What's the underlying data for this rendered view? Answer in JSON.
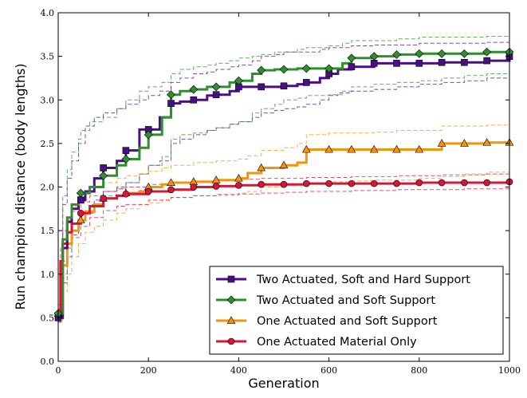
{
  "chart_data": {
    "type": "line",
    "xlabel": "Generation",
    "ylabel": "Run champion distance (body lengths)",
    "xlim": [
      0,
      1000
    ],
    "ylim": [
      0.0,
      4.0
    ],
    "xticks": [
      "0",
      "200",
      "400",
      "600",
      "800",
      "1000"
    ],
    "yticks": [
      "0.0",
      "0.5",
      "1.0",
      "1.5",
      "2.0",
      "2.5",
      "3.0",
      "3.5",
      "4.0"
    ],
    "grid": false,
    "legend_position": "lower-right",
    "series": [
      {
        "name": "Two Actuated, Soft and Hard Support",
        "color": "#4b0f85",
        "marker": "square",
        "x": [
          0,
          10,
          20,
          30,
          45,
          60,
          80,
          100,
          130,
          150,
          180,
          200,
          225,
          250,
          270,
          300,
          330,
          350,
          380,
          400,
          430,
          450,
          480,
          500,
          530,
          550,
          580,
          600,
          620,
          650,
          700,
          750,
          800,
          850,
          900,
          950,
          1000
        ],
        "values": [
          0.5,
          1.3,
          1.6,
          1.75,
          1.85,
          1.95,
          2.1,
          2.22,
          2.3,
          2.42,
          2.66,
          2.66,
          2.8,
          2.96,
          2.98,
          3.0,
          3.05,
          3.06,
          3.1,
          3.15,
          3.15,
          3.15,
          3.15,
          3.16,
          3.18,
          3.2,
          3.25,
          3.3,
          3.35,
          3.38,
          3.42,
          3.42,
          3.42,
          3.43,
          3.43,
          3.45,
          3.5
        ],
        "upper": [
          0.6,
          1.8,
          2.1,
          2.3,
          2.5,
          2.7,
          2.8,
          2.85,
          2.9,
          2.95,
          3.0,
          3.05,
          3.1,
          3.2,
          3.25,
          3.3,
          3.32,
          3.35,
          3.38,
          3.4,
          3.45,
          3.5,
          3.52,
          3.55,
          3.55,
          3.55,
          3.58,
          3.6,
          3.6,
          3.62,
          3.63,
          3.63,
          3.65,
          3.65,
          3.65,
          3.66,
          3.7
        ],
        "lower": [
          0.45,
          0.9,
          1.2,
          1.45,
          1.6,
          1.7,
          1.85,
          1.95,
          2.0,
          2.05,
          2.15,
          2.25,
          2.3,
          2.5,
          2.55,
          2.6,
          2.65,
          2.68,
          2.72,
          2.75,
          2.8,
          2.85,
          2.88,
          2.9,
          2.92,
          2.95,
          3.0,
          3.05,
          3.08,
          3.1,
          3.12,
          3.15,
          3.18,
          3.2,
          3.22,
          3.25,
          3.3
        ]
      },
      {
        "name": "Two Actuated and Soft Support",
        "color": "#2f8f2f",
        "marker": "diamond",
        "x": [
          0,
          10,
          20,
          30,
          45,
          50,
          70,
          100,
          130,
          150,
          180,
          200,
          230,
          250,
          270,
          300,
          330,
          350,
          380,
          400,
          430,
          450,
          480,
          500,
          530,
          550,
          580,
          600,
          630,
          650,
          700,
          750,
          800,
          850,
          900,
          950,
          1000
        ],
        "values": [
          0.55,
          1.4,
          1.65,
          1.8,
          1.88,
          1.93,
          2.0,
          2.13,
          2.25,
          2.32,
          2.45,
          2.6,
          2.8,
          3.06,
          3.1,
          3.12,
          3.15,
          3.15,
          3.2,
          3.22,
          3.3,
          3.34,
          3.35,
          3.35,
          3.36,
          3.36,
          3.36,
          3.36,
          3.42,
          3.48,
          3.5,
          3.52,
          3.53,
          3.53,
          3.53,
          3.55,
          3.55
        ],
        "upper": [
          0.65,
          1.9,
          2.2,
          2.4,
          2.55,
          2.65,
          2.75,
          2.8,
          2.9,
          3.0,
          3.1,
          3.15,
          3.2,
          3.3,
          3.35,
          3.38,
          3.4,
          3.42,
          3.45,
          3.48,
          3.5,
          3.52,
          3.55,
          3.55,
          3.58,
          3.6,
          3.6,
          3.62,
          3.65,
          3.68,
          3.68,
          3.7,
          3.72,
          3.72,
          3.72,
          3.73,
          3.76
        ],
        "lower": [
          0.5,
          1.0,
          1.3,
          1.5,
          1.65,
          1.72,
          1.8,
          1.9,
          1.98,
          2.05,
          2.15,
          2.25,
          2.35,
          2.55,
          2.6,
          2.62,
          2.65,
          2.68,
          2.72,
          2.75,
          2.85,
          2.9,
          2.95,
          3.0,
          3.02,
          3.05,
          3.05,
          3.06,
          3.1,
          3.15,
          3.18,
          3.2,
          3.22,
          3.25,
          3.28,
          3.3,
          3.35
        ]
      },
      {
        "name": "One Actuated and Soft Support",
        "color": "#f2940f",
        "marker": "triangle",
        "x": [
          0,
          10,
          20,
          30,
          45,
          60,
          80,
          100,
          130,
          150,
          180,
          200,
          230,
          250,
          300,
          350,
          400,
          420,
          450,
          500,
          530,
          550,
          600,
          650,
          700,
          750,
          800,
          850,
          900,
          950,
          1000
        ],
        "values": [
          0.55,
          1.1,
          1.35,
          1.5,
          1.62,
          1.72,
          1.8,
          1.87,
          1.9,
          1.93,
          1.95,
          2.0,
          2.03,
          2.05,
          2.06,
          2.08,
          2.1,
          2.16,
          2.22,
          2.25,
          2.28,
          2.43,
          2.43,
          2.43,
          2.43,
          2.43,
          2.43,
          2.5,
          2.5,
          2.51,
          2.51
        ],
        "upper": [
          0.65,
          1.4,
          1.65,
          1.78,
          1.88,
          1.95,
          2.0,
          2.05,
          2.1,
          2.13,
          2.15,
          2.18,
          2.22,
          2.25,
          2.28,
          2.3,
          2.32,
          2.36,
          2.42,
          2.45,
          2.5,
          2.6,
          2.62,
          2.62,
          2.63,
          2.65,
          2.65,
          2.7,
          2.7,
          2.71,
          2.72
        ],
        "lower": [
          0.45,
          0.8,
          1.0,
          1.2,
          1.35,
          1.48,
          1.55,
          1.62,
          1.7,
          1.75,
          1.8,
          1.82,
          1.85,
          1.88,
          1.9,
          1.92,
          1.93,
          1.95,
          2.0,
          2.02,
          2.03,
          2.05,
          2.06,
          2.07,
          2.08,
          2.08,
          2.1,
          2.12,
          2.15,
          2.17,
          2.2
        ]
      },
      {
        "name": "One Actuated Material Only",
        "color": "#d6173a",
        "marker": "circle",
        "x": [
          0,
          5,
          10,
          20,
          30,
          50,
          70,
          100,
          130,
          150,
          200,
          250,
          300,
          350,
          400,
          450,
          500,
          550,
          600,
          650,
          700,
          750,
          800,
          850,
          900,
          950,
          1000
        ],
        "values": [
          0.5,
          1.15,
          1.35,
          1.48,
          1.58,
          1.7,
          1.78,
          1.87,
          1.9,
          1.92,
          1.95,
          1.97,
          2.0,
          2.01,
          2.02,
          2.03,
          2.03,
          2.04,
          2.04,
          2.04,
          2.04,
          2.04,
          2.05,
          2.05,
          2.05,
          2.05,
          2.06
        ],
        "upper": [
          0.55,
          1.3,
          1.5,
          1.62,
          1.72,
          1.83,
          1.9,
          1.95,
          1.98,
          2.0,
          2.03,
          2.05,
          2.07,
          2.08,
          2.09,
          2.1,
          2.1,
          2.11,
          2.11,
          2.12,
          2.12,
          2.13,
          2.13,
          2.14,
          2.14,
          2.15,
          2.15
        ],
        "lower": [
          0.45,
          0.95,
          1.15,
          1.3,
          1.42,
          1.55,
          1.65,
          1.73,
          1.78,
          1.8,
          1.85,
          1.88,
          1.9,
          1.91,
          1.92,
          1.93,
          1.94,
          1.95,
          1.95,
          1.96,
          1.96,
          1.97,
          1.97,
          1.97,
          1.98,
          1.98,
          1.98
        ]
      }
    ]
  }
}
